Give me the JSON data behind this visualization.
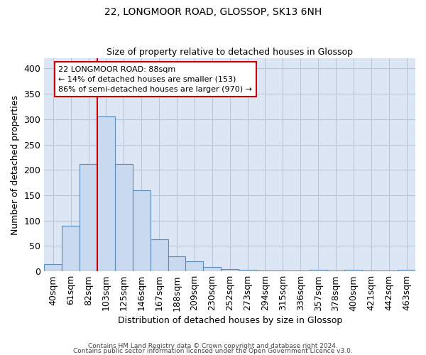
{
  "title1": "22, LONGMOOR ROAD, GLOSSOP, SK13 6NH",
  "title2": "Size of property relative to detached houses in Glossop",
  "xlabel": "Distribution of detached houses by size in Glossop",
  "ylabel": "Number of detached properties",
  "footer1": "Contains HM Land Registry data © Crown copyright and database right 2024.",
  "footer2": "Contains public sector information licensed under the Open Government Licence v3.0.",
  "bin_labels": [
    "40sqm",
    "61sqm",
    "82sqm",
    "103sqm",
    "125sqm",
    "146sqm",
    "167sqm",
    "188sqm",
    "209sqm",
    "230sqm",
    "252sqm",
    "273sqm",
    "294sqm",
    "315sqm",
    "336sqm",
    "357sqm",
    "378sqm",
    "400sqm",
    "421sqm",
    "442sqm",
    "463sqm"
  ],
  "bar_values": [
    14,
    90,
    211,
    305,
    211,
    160,
    63,
    30,
    20,
    9,
    5,
    3,
    1,
    2,
    1,
    3,
    2,
    3,
    1,
    1,
    3
  ],
  "bar_color": "#c9d9ef",
  "bar_edge_color": "#5b8db8",
  "grid_color": "#b8c4d8",
  "background_color": "#dce6f5",
  "annotation_line1": "22 LONGMOOR ROAD: 88sqm",
  "annotation_line2": "← 14% of detached houses are smaller (153)",
  "annotation_line3": "86% of semi-detached houses are larger (970) →",
  "annotation_box_color": "#ffffff",
  "annotation_box_edge": "#cc0000",
  "redline_color": "#cc0000",
  "ylim": [
    0,
    420
  ],
  "yticks": [
    0,
    50,
    100,
    150,
    200,
    250,
    300,
    350,
    400
  ]
}
